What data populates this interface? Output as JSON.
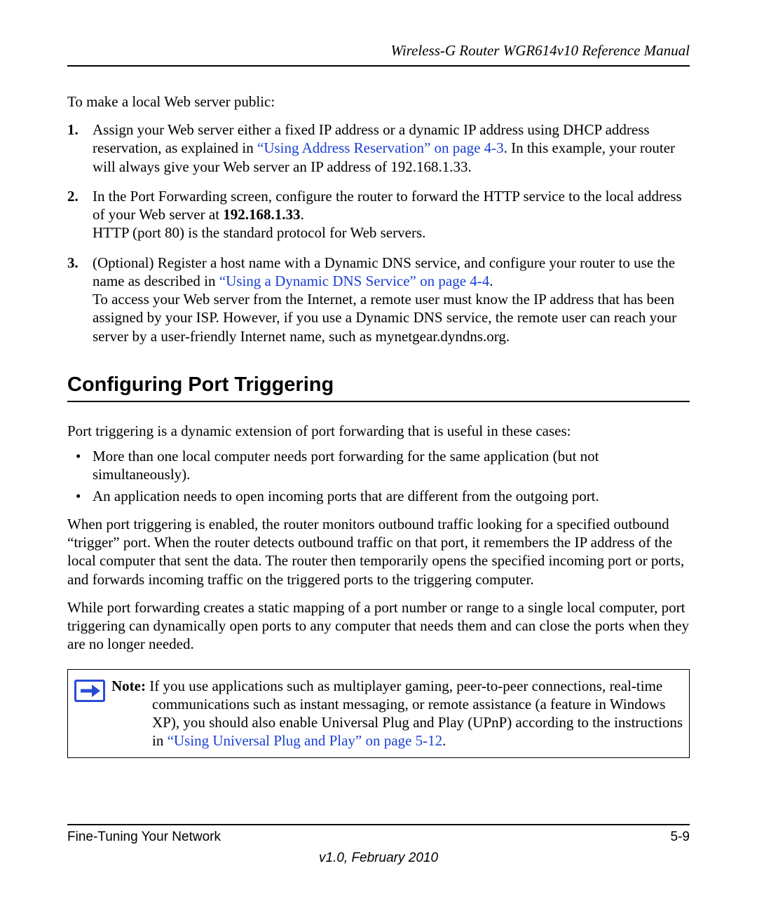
{
  "header": {
    "title": "Wireless-G Router WGR614v10 Reference Manual"
  },
  "intro": "To make a local Web server public:",
  "steps": [
    {
      "num": "1.",
      "pre": "Assign your Web server either a fixed IP address or a dynamic IP address using DHCP address reservation, as explained in ",
      "link": "“Using Address Reservation” on page 4-3",
      "post": ". In this example, your router will always give your Web server an IP address of 192.168.1.33."
    },
    {
      "num": "2.",
      "line1a": "In the Port Forwarding screen, configure the router to forward the HTTP service to the local address of your Web server at ",
      "bold": "192.168.1.33",
      "line1b": ".",
      "line2": "HTTP (port 80) is the standard protocol for Web servers."
    },
    {
      "num": "3.",
      "pre": "(Optional) Register a host name with a Dynamic DNS service, and configure your router to use the name as described in ",
      "link": "“Using a Dynamic DNS Service” on page 4-4",
      "mid": ".",
      "rest": "To access your Web server from the Internet, a remote user must know the IP address that has been assigned by your ISP. However, if you use a Dynamic DNS service, the remote user can reach your server by a user-friendly Internet name, such as mynetgear.dyndns.org."
    }
  ],
  "section_heading": "Configuring Port Triggering",
  "para1": "Port triggering is a dynamic extension of port forwarding that is useful in these cases:",
  "bullets": [
    "More than one local computer needs port forwarding for the same application (but not simultaneously).",
    "An application needs to open incoming ports that are different from the outgoing port."
  ],
  "para2": "When port triggering is enabled, the router monitors outbound traffic looking for a specified outbound “trigger” port. When the router detects outbound traffic on that port, it remembers the IP address of the local computer that sent the data. The router then temporarily opens the specified incoming port or ports, and forwards incoming traffic on the triggered ports to the triggering computer.",
  "para3": "While port forwarding creates a static mapping of a port number or range to a single local computer, port triggering can dynamically open ports to any computer that needs them and can close the ports when they are no longer needed.",
  "note": {
    "label": "Note:",
    "text_pre": " If you use applications such as multiplayer gaming, peer-to-peer connections, real-time communications such as instant messaging, or remote assistance (a feature in Windows XP), you should also enable Universal Plug and Play (UPnP) according to the instructions in ",
    "link": "“Using Universal Plug and Play” on page 5-12",
    "text_post": "."
  },
  "footer": {
    "left": "Fine-Tuning Your Network",
    "right": "5-9",
    "version": "v1.0, February 2010"
  },
  "colors": {
    "link": "#1a3fd6",
    "icon": "#2a4bd7",
    "text": "#000000",
    "background": "#ffffff"
  },
  "typography": {
    "body_font": "Times New Roman",
    "body_size_pt": 16,
    "heading_font": "Arial",
    "heading_size_pt": 22,
    "heading_weight": "bold",
    "footer_font": "Arial",
    "footer_size_pt": 14
  }
}
